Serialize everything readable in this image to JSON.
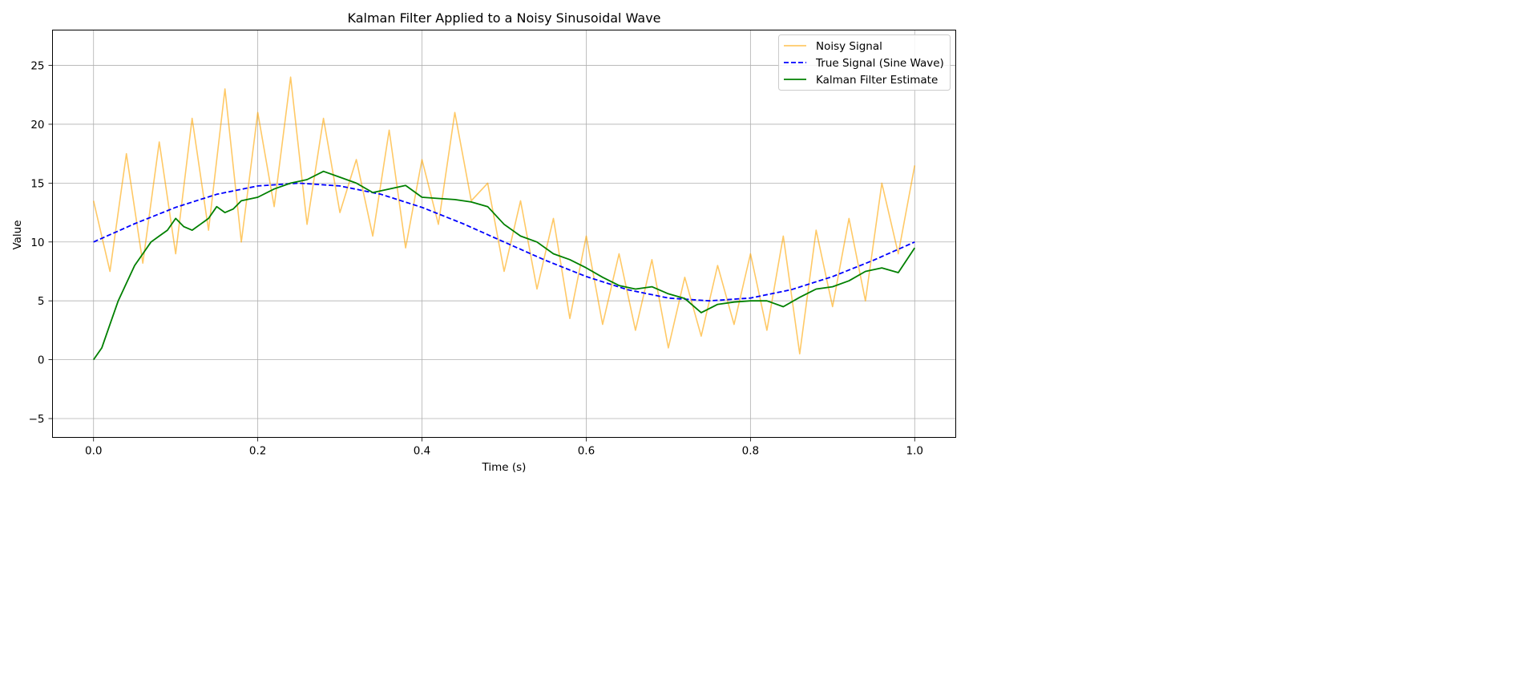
{
  "chart_data": {
    "type": "line",
    "title": "Kalman Filter Applied to a Noisy Sinusoidal Wave",
    "xlabel": "Time (s)",
    "ylabel": "Value",
    "xlim": [
      -0.05,
      1.05
    ],
    "ylim": [
      -6.6,
      28.0
    ],
    "xticks": [
      0.0,
      0.2,
      0.4,
      0.6,
      0.8,
      1.0
    ],
    "xtick_labels": [
      "0.0",
      "0.2",
      "0.4",
      "0.6",
      "0.8",
      "1.0"
    ],
    "yticks": [
      -5,
      0,
      5,
      10,
      15,
      20,
      25
    ],
    "ytick_labels": [
      "−5",
      "0",
      "5",
      "10",
      "15",
      "20",
      "25"
    ],
    "grid": true,
    "legend_position": "top-right",
    "series": [
      {
        "name": "Noisy Signal",
        "color": "#FFA500",
        "style": "solid",
        "x": [
          0.0,
          0.02,
          0.04,
          0.06,
          0.08,
          0.1,
          0.12,
          0.14,
          0.16,
          0.18,
          0.2,
          0.22,
          0.24,
          0.26,
          0.28,
          0.3,
          0.32,
          0.34,
          0.36,
          0.38,
          0.4,
          0.42,
          0.44,
          0.46,
          0.48,
          0.5,
          0.52,
          0.54,
          0.56,
          0.58,
          0.6,
          0.62,
          0.64,
          0.66,
          0.68,
          0.7,
          0.72,
          0.74,
          0.76,
          0.78,
          0.8,
          0.82,
          0.84,
          0.86,
          0.88,
          0.9,
          0.92,
          0.94,
          0.96,
          0.98,
          1.0
        ],
        "y": [
          13.5,
          7.5,
          17.5,
          8.2,
          18.5,
          9.0,
          20.5,
          11.0,
          23.0,
          10.0,
          21.0,
          13.0,
          24.0,
          11.5,
          20.5,
          12.5,
          17.0,
          10.5,
          19.5,
          9.5,
          17.0,
          11.5,
          21.0,
          13.5,
          15.0,
          7.5,
          13.5,
          6.0,
          12.0,
          3.5,
          10.5,
          3.0,
          9.0,
          2.5,
          8.5,
          1.0,
          7.0,
          2.0,
          8.0,
          3.0,
          9.0,
          2.5,
          10.5,
          0.5,
          11.0,
          4.5,
          12.0,
          5.0,
          15.0,
          9.0,
          16.5
        ]
      },
      {
        "name": "True Signal (Sine Wave)",
        "color": "#0000FF",
        "style": "dashed",
        "x": [
          0.0,
          0.05,
          0.1,
          0.15,
          0.2,
          0.25,
          0.3,
          0.35,
          0.4,
          0.45,
          0.5,
          0.55,
          0.6,
          0.65,
          0.7,
          0.75,
          0.8,
          0.85,
          0.9,
          0.95,
          1.0
        ],
        "y": [
          10.0,
          11.55,
          12.94,
          14.05,
          14.76,
          15.0,
          14.76,
          14.05,
          12.94,
          11.55,
          10.0,
          8.45,
          7.06,
          5.95,
          5.24,
          5.0,
          5.24,
          5.95,
          7.06,
          8.45,
          10.0
        ]
      },
      {
        "name": "Kalman Filter Estimate",
        "color": "#008000",
        "style": "solid",
        "x": [
          0.0,
          0.01,
          0.02,
          0.03,
          0.04,
          0.05,
          0.06,
          0.07,
          0.08,
          0.09,
          0.1,
          0.11,
          0.12,
          0.13,
          0.14,
          0.15,
          0.16,
          0.17,
          0.18,
          0.2,
          0.22,
          0.24,
          0.26,
          0.28,
          0.3,
          0.32,
          0.34,
          0.36,
          0.38,
          0.4,
          0.42,
          0.44,
          0.46,
          0.48,
          0.5,
          0.52,
          0.54,
          0.56,
          0.58,
          0.6,
          0.62,
          0.64,
          0.66,
          0.68,
          0.7,
          0.72,
          0.74,
          0.76,
          0.78,
          0.8,
          0.82,
          0.84,
          0.86,
          0.88,
          0.9,
          0.92,
          0.94,
          0.96,
          0.98,
          1.0
        ],
        "y": [
          0.0,
          1.0,
          3.0,
          5.0,
          6.5,
          8.0,
          9.0,
          10.0,
          10.5,
          11.0,
          12.0,
          11.3,
          11.0,
          11.5,
          12.0,
          13.0,
          12.5,
          12.8,
          13.5,
          13.8,
          14.5,
          15.0,
          15.3,
          16.0,
          15.5,
          15.0,
          14.2,
          14.5,
          14.8,
          13.8,
          13.7,
          13.6,
          13.4,
          13.0,
          11.5,
          10.5,
          10.0,
          9.0,
          8.5,
          7.8,
          7.0,
          6.3,
          6.0,
          6.2,
          5.6,
          5.2,
          4.0,
          4.7,
          4.9,
          5.0,
          5.0,
          4.5,
          5.3,
          6.0,
          6.2,
          6.7,
          7.5,
          7.8,
          7.4,
          9.5
        ]
      }
    ]
  }
}
